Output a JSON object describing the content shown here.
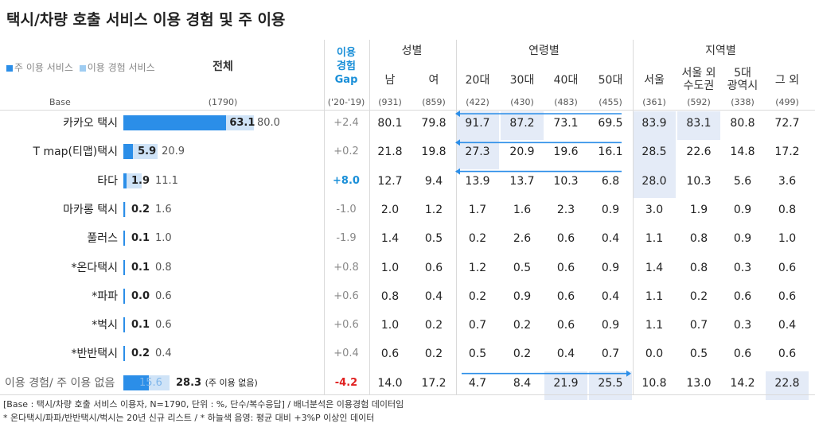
{
  "title": "택시/차량 호출 서비스 이용 경험 및 주 이용",
  "legend": {
    "main": "주 이용 서비스",
    "exp": "이용 경험 서비스",
    "main_color": "#2b8ee8",
    "exp_color": "#cfe3f7"
  },
  "header": {
    "total": "전체",
    "gap": [
      "이용",
      "경험",
      "Gap"
    ],
    "groups": [
      {
        "label": "성별"
      },
      {
        "label": "연령별"
      },
      {
        "label": "지역별"
      }
    ],
    "columns": [
      "남",
      "여",
      "20대",
      "30대",
      "40대",
      "50대",
      "서울",
      "서울 외|수도권",
      "5대|광역시",
      "그 외"
    ]
  },
  "base_row": {
    "label": "Base",
    "total": "(1790)",
    "gap": "('20-'19)",
    "values": [
      "(931)",
      "(859)",
      "(422)",
      "(430)",
      "(483)",
      "(455)",
      "(361)",
      "(592)",
      "(338)",
      "(499)"
    ]
  },
  "chart_data": {
    "type": "bar",
    "title": "택시/차량 호출 서비스 이용 경험 및 주 이용",
    "categories": [
      "카카오 택시",
      "T map(티맵)택시",
      "타다",
      "마카롱 택시",
      "풀러스",
      "*온다택시",
      "*파파",
      "*벅시",
      "*반반택시",
      "이용 경험/ 주 이용 없음"
    ],
    "series": [
      {
        "name": "주 이용 서비스",
        "values": [
          63.1,
          5.9,
          1.9,
          0.2,
          0.1,
          0.1,
          0.0,
          0.1,
          0.2,
          15.6
        ]
      },
      {
        "name": "이용 경험 서비스",
        "values": [
          80.0,
          20.9,
          11.1,
          1.6,
          1.0,
          0.8,
          0.6,
          0.6,
          0.4,
          28.3
        ]
      }
    ],
    "exp_suffix_last": "(주 이용 없음)",
    "xlim": [
      0,
      100
    ]
  },
  "rows": [
    {
      "gap": "+2.4",
      "values": [
        "80.1",
        "79.8",
        "91.7",
        "87.2",
        "73.1",
        "69.5",
        "83.9",
        "83.1",
        "80.8",
        "72.7"
      ]
    },
    {
      "gap": "+0.2",
      "values": [
        "21.8",
        "19.8",
        "27.3",
        "20.9",
        "19.6",
        "16.1",
        "28.5",
        "22.6",
        "14.8",
        "17.2"
      ]
    },
    {
      "gap": "+8.0",
      "values": [
        "12.7",
        "9.4",
        "13.9",
        "13.7",
        "10.3",
        "6.8",
        "28.0",
        "10.3",
        "5.6",
        "3.6"
      ]
    },
    {
      "gap": "-1.0",
      "values": [
        "2.0",
        "1.2",
        "1.7",
        "1.6",
        "2.3",
        "0.9",
        "3.0",
        "1.9",
        "0.9",
        "0.8"
      ]
    },
    {
      "gap": "-1.9",
      "values": [
        "1.4",
        "0.5",
        "0.2",
        "2.6",
        "0.6",
        "0.4",
        "1.1",
        "0.8",
        "0.9",
        "1.0"
      ]
    },
    {
      "gap": "+0.8",
      "values": [
        "1.0",
        "0.6",
        "1.2",
        "0.5",
        "0.6",
        "0.9",
        "1.4",
        "0.8",
        "0.3",
        "0.6"
      ]
    },
    {
      "gap": "+0.6",
      "values": [
        "0.8",
        "0.4",
        "0.2",
        "0.9",
        "0.6",
        "0.4",
        "1.1",
        "0.2",
        "0.6",
        "0.6"
      ]
    },
    {
      "gap": "+0.6",
      "values": [
        "1.0",
        "0.2",
        "0.7",
        "0.2",
        "0.6",
        "0.9",
        "1.1",
        "0.7",
        "0.3",
        "0.4"
      ]
    },
    {
      "gap": "+0.4",
      "values": [
        "0.6",
        "0.2",
        "0.5",
        "0.2",
        "0.4",
        "0.7",
        "0.0",
        "0.5",
        "0.6",
        "0.6"
      ]
    },
    {
      "gap": "-4.2",
      "values": [
        "14.0",
        "17.2",
        "4.7",
        "8.4",
        "21.9",
        "25.5",
        "10.8",
        "13.0",
        "14.2",
        "22.8"
      ]
    }
  ],
  "gap_colors": {
    "strong_pos": "#1a8fd8",
    "strong_neg": "#e02020",
    "normal": "#888888"
  },
  "highlight_color": "#e4ebf7",
  "arrow_color": "#2b8ee8",
  "highlights": [
    {
      "row": 0,
      "col": 2
    },
    {
      "row": 0,
      "col": 3
    },
    {
      "row": 0,
      "col": 6
    },
    {
      "row": 0,
      "col": 7
    },
    {
      "row": 1,
      "col": 2
    },
    {
      "row": 1,
      "col": 6
    },
    {
      "row": 2,
      "col": 6
    },
    {
      "row": 9,
      "col": 4
    },
    {
      "row": 9,
      "col": 5
    },
    {
      "row": 9,
      "col": 9
    }
  ],
  "arrows": [
    {
      "row": 0,
      "from_col": 5,
      "to_col": 2,
      "direction": "left"
    },
    {
      "row": 1,
      "from_col": 5,
      "to_col": 2,
      "direction": "left"
    },
    {
      "row": 2,
      "from_col": 5,
      "to_col": 2,
      "direction": "left"
    },
    {
      "row": 9,
      "from_col": 2,
      "to_col": 5,
      "direction": "right"
    }
  ],
  "footnotes": [
    "[Base : 택시/차량 호출 서비스 이용자, N=1790, 단위 : %, 단수/복수응답] / 배너분석은 이용경험 데이터임",
    "* 온다택시/파파/반반택시/벅시는 20년 신규 리스트 / * 하늘색 음영: 평균 대비 +3%P 이상인 데이터"
  ]
}
